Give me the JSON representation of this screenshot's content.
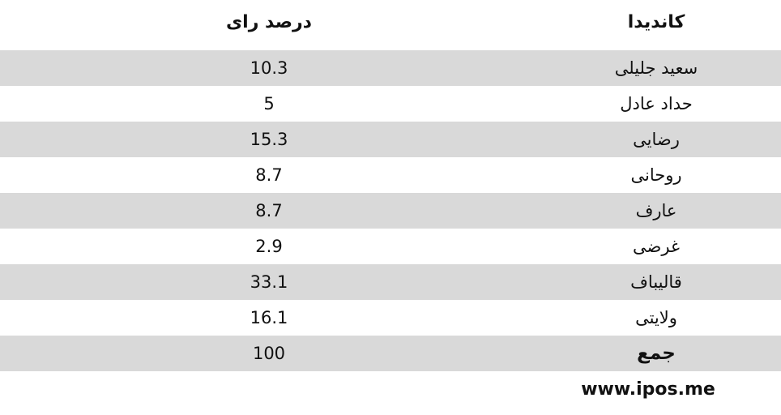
{
  "chart_data": {
    "type": "table",
    "columns": [
      "کاندیدا",
      "درصد رای"
    ],
    "rows": [
      {
        "name": "سعید جلیلی",
        "value": "10.3"
      },
      {
        "name": "حداد عادل",
        "value": "5"
      },
      {
        "name": "رضایی",
        "value": "15.3"
      },
      {
        "name": "روحانی",
        "value": "8.7"
      },
      {
        "name": "عارف",
        "value": "8.7"
      },
      {
        "name": "غرضی",
        "value": "2.9"
      },
      {
        "name": "قالیباف",
        "value": "33.1"
      },
      {
        "name": "ولایتی",
        "value": "16.1"
      }
    ],
    "total": {
      "name": "جمع",
      "value": "100"
    },
    "source": "www.ipos.me",
    "row_colors": {
      "shaded": "#d9d9d9",
      "plain": "#ffffff"
    }
  }
}
